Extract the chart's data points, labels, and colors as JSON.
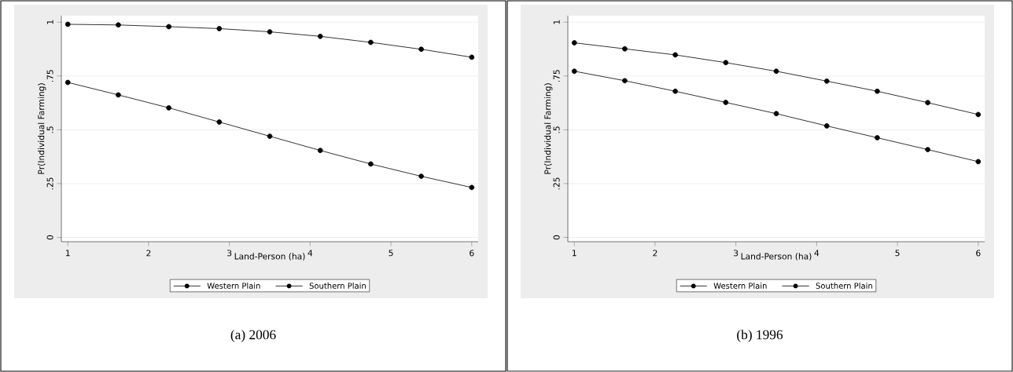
{
  "chart_data": [
    {
      "type": "line",
      "xlabel": "Land-Person (ha)",
      "ylabel": "Pr(Individual Farming)",
      "annotations": [
        "(a) 2006"
      ],
      "x": [
        1,
        1.625,
        2.25,
        2.875,
        3.5,
        4.125,
        4.75,
        5.375,
        6
      ],
      "series": [
        {
          "name": "Western Plain",
          "color": "#000000",
          "values": [
            0.99,
            0.987,
            0.979,
            0.97,
            0.955,
            0.934,
            0.906,
            0.874,
            0.837
          ]
        },
        {
          "name": "Southern Plain",
          "color": "#000000",
          "values": [
            0.72,
            0.662,
            0.602,
            0.536,
            0.47,
            0.404,
            0.341,
            0.284,
            0.232
          ]
        }
      ],
      "xlim": [
        0.92,
        6.08
      ],
      "ylim": [
        -0.02,
        1.03
      ],
      "xticks": [
        1,
        2,
        3,
        4,
        5,
        6
      ],
      "yticks": [
        0,
        {
          "value": 0.25,
          "label": ".25"
        },
        {
          "value": 0.5,
          "label": ".5"
        },
        {
          "value": 0.75,
          "label": ".75"
        },
        1
      ],
      "grid": "y",
      "legend": "bottom",
      "marker": "circle"
    },
    {
      "type": "line",
      "xlabel": "Land-Person (ha)",
      "ylabel": "Pr(Individual Farming)",
      "annotations": [
        "(b) 1996"
      ],
      "x": [
        1,
        1.625,
        2.25,
        2.875,
        3.5,
        4.125,
        4.75,
        5.375,
        6
      ],
      "series": [
        {
          "name": "Western Plain",
          "color": "#000000",
          "values": [
            0.904,
            0.876,
            0.848,
            0.812,
            0.772,
            0.726,
            0.679,
            0.626,
            0.571
          ]
        },
        {
          "name": "Southern Plain",
          "color": "#000000",
          "values": [
            0.772,
            0.728,
            0.679,
            0.627,
            0.575,
            0.518,
            0.463,
            0.408,
            0.352
          ]
        }
      ],
      "xlim": [
        0.92,
        6.08
      ],
      "ylim": [
        -0.02,
        1.03
      ],
      "xticks": [
        1,
        2,
        3,
        4,
        5,
        6
      ],
      "yticks": [
        0,
        {
          "value": 0.25,
          "label": ".25"
        },
        {
          "value": 0.5,
          "label": ".5"
        },
        {
          "value": 0.75,
          "label": ".75"
        },
        1
      ],
      "grid": "y",
      "legend": "bottom",
      "marker": "circle"
    }
  ]
}
